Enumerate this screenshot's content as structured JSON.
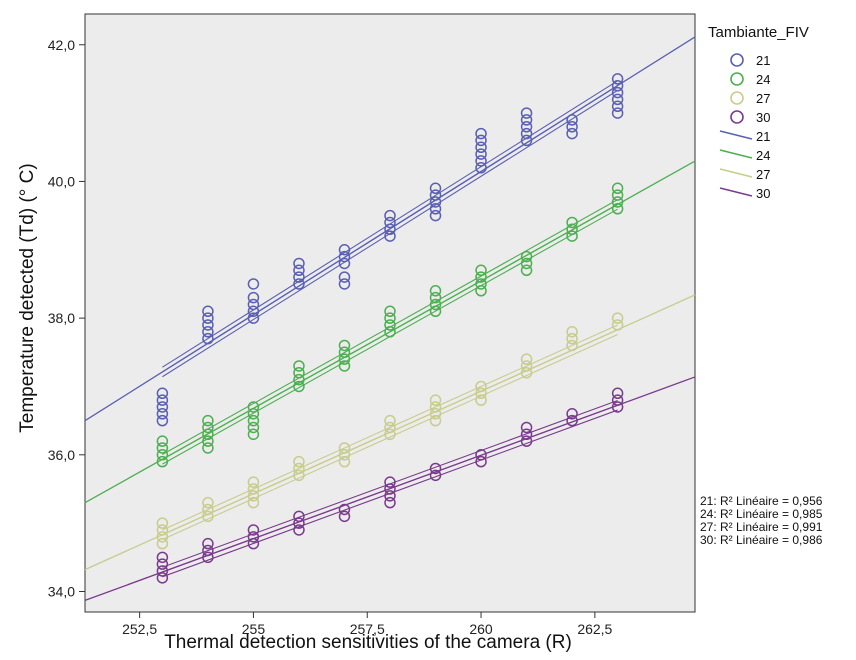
{
  "chart_data": {
    "type": "scatter",
    "title": "",
    "xlabel": "Thermal detection sensitivities of the camera (R)",
    "ylabel": "Temperature detected (Td)  (° C)",
    "xlim": [
      251.3,
      264.7
    ],
    "ylim": [
      33.7,
      42.45
    ],
    "x_ticks": [
      252.5,
      255,
      257.5,
      260,
      262.5
    ],
    "x_tick_labels": [
      "252,5",
      "255",
      "257,5",
      "260",
      "262,5"
    ],
    "y_ticks": [
      34,
      36,
      38,
      40,
      42
    ],
    "y_tick_labels": [
      "34,0",
      "36,0",
      "38,0",
      "40,0",
      "42,0"
    ],
    "grid": false,
    "background": "#ececec",
    "x": [
      253,
      254,
      255,
      256,
      257,
      258,
      259,
      260,
      261,
      262,
      263
    ],
    "legend": {
      "title": "Tambiante_FIV",
      "position": "right",
      "marker_labels": [
        "21",
        "24",
        "27",
        "30"
      ],
      "line_labels": [
        "21",
        "24",
        "27",
        "30"
      ]
    },
    "series": [
      {
        "name": "21",
        "color": "#5a5fb4",
        "points_y": [
          [
            36.5,
            36.6,
            36.7,
            36.9,
            36.8
          ],
          [
            37.7,
            37.8,
            37.9,
            38.0,
            38.1
          ],
          [
            38.0,
            38.1,
            38.2,
            38.3,
            38.5
          ],
          [
            38.5,
            38.6,
            38.7,
            38.8
          ],
          [
            38.5,
            38.6,
            38.8,
            38.9,
            39.0
          ],
          [
            39.2,
            39.3,
            39.4,
            39.5
          ],
          [
            39.5,
            39.6,
            39.7,
            39.8,
            39.9
          ],
          [
            40.2,
            40.3,
            40.4,
            40.5,
            40.6,
            40.7
          ],
          [
            40.6,
            40.7,
            40.8,
            40.9,
            41.0
          ],
          [
            40.7,
            40.8,
            40.9
          ],
          [
            41.0,
            41.1,
            41.2,
            41.3,
            41.4,
            41.5
          ]
        ],
        "fit": {
          "intercept_at_251_3": 36.5,
          "slope": 0.419
        },
        "r2_label": "21: R² Linéaire = 0,956"
      },
      {
        "name": "24",
        "color": "#4caf50",
        "points_y": [
          [
            35.9,
            36.0,
            36.1,
            36.2
          ],
          [
            36.1,
            36.2,
            36.3,
            36.4,
            36.5
          ],
          [
            36.3,
            36.4,
            36.5,
            36.6,
            36.7
          ],
          [
            37.0,
            37.1,
            37.2,
            37.3
          ],
          [
            37.3,
            37.4,
            37.5,
            37.6
          ],
          [
            37.8,
            37.9,
            38.0,
            38.1
          ],
          [
            38.1,
            38.2,
            38.3,
            38.4
          ],
          [
            38.4,
            38.5,
            38.6,
            38.7
          ],
          [
            38.7,
            38.8,
            38.9
          ],
          [
            39.2,
            39.3,
            39.4
          ],
          [
            39.6,
            39.7,
            39.8,
            39.9
          ]
        ],
        "fit": {
          "intercept_at_251_3": 35.3,
          "slope": 0.373
        },
        "r2_label": "24: R² Linéaire = 0,985"
      },
      {
        "name": "27",
        "color": "#c8cc8c",
        "points_y": [
          [
            34.7,
            34.8,
            34.9,
            35.0
          ],
          [
            35.1,
            35.2,
            35.3
          ],
          [
            35.3,
            35.4,
            35.5,
            35.6
          ],
          [
            35.7,
            35.8,
            35.9
          ],
          [
            35.9,
            36.0,
            36.1
          ],
          [
            36.3,
            36.4,
            36.5
          ],
          [
            36.5,
            36.6,
            36.7,
            36.8
          ],
          [
            36.8,
            36.9,
            37.0
          ],
          [
            37.2,
            37.3,
            37.4
          ],
          [
            37.6,
            37.7,
            37.8
          ],
          [
            37.9,
            38.0
          ]
        ],
        "fit": {
          "intercept_at_251_3": 34.32,
          "slope": 0.3
        },
        "r2_label": "27: R² Linéaire = 0,991"
      },
      {
        "name": "30",
        "color": "#7a3b8e",
        "points_y": [
          [
            34.2,
            34.3,
            34.4,
            34.5
          ],
          [
            34.5,
            34.6,
            34.7
          ],
          [
            34.7,
            34.8,
            34.9
          ],
          [
            34.9,
            35.0,
            35.1
          ],
          [
            35.1,
            35.2
          ],
          [
            35.3,
            35.4,
            35.5,
            35.6
          ],
          [
            35.7,
            35.8
          ],
          [
            35.9,
            36.0
          ],
          [
            36.2,
            36.3,
            36.4
          ],
          [
            36.5,
            36.6
          ],
          [
            36.7,
            36.8,
            36.9
          ]
        ],
        "fit": {
          "intercept_at_251_3": 33.87,
          "slope": 0.244
        },
        "r2_label": "30: R² Linéaire = 0,986"
      }
    ]
  }
}
